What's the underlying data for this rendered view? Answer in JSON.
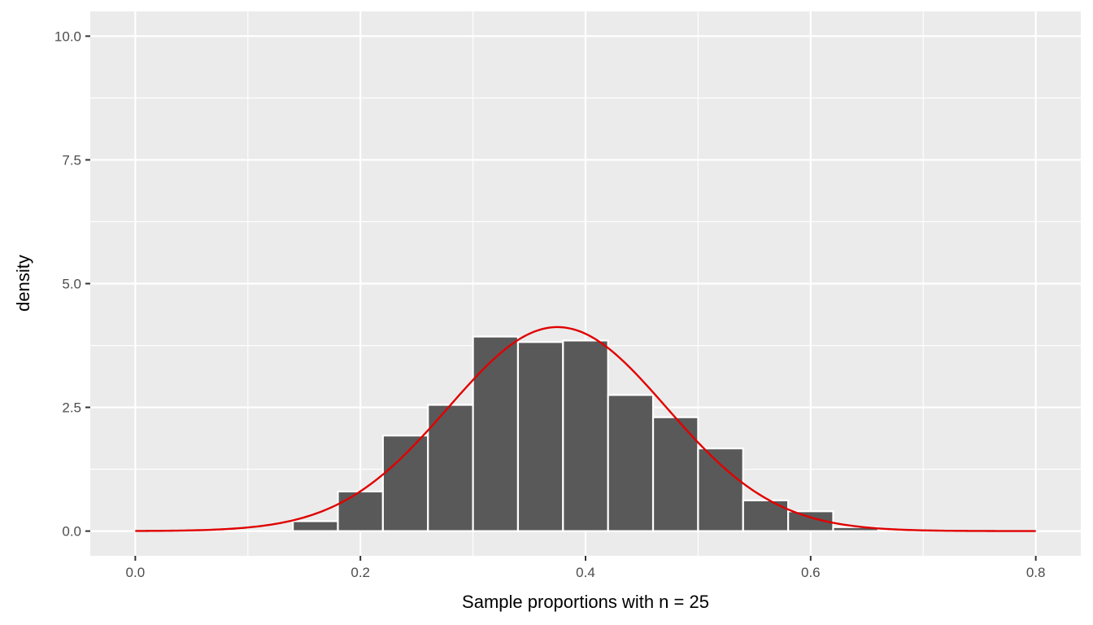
{
  "chart_data": {
    "type": "bar",
    "title": "",
    "xlabel": "Sample proportions with n = 25",
    "ylabel": "density",
    "xlim": [
      -0.04,
      0.84
    ],
    "ylim": [
      -0.5,
      10.5
    ],
    "x_ticks": [
      0.0,
      0.2,
      0.4,
      0.6,
      0.8
    ],
    "x_tick_labels": [
      "0.0",
      "0.2",
      "0.4",
      "0.6",
      "0.8"
    ],
    "y_ticks": [
      0.0,
      2.5,
      5.0,
      7.5,
      10.0
    ],
    "y_tick_labels": [
      "0.0",
      "2.5",
      "5.0",
      "7.5",
      "10.0"
    ],
    "grid": true,
    "bin_width": 0.04,
    "histogram": {
      "name": "density",
      "bins": [
        {
          "x0": 0.14,
          "x1": 0.18,
          "density": 0.2
        },
        {
          "x0": 0.18,
          "x1": 0.22,
          "density": 0.8
        },
        {
          "x0": 0.22,
          "x1": 0.26,
          "density": 1.93
        },
        {
          "x0": 0.26,
          "x1": 0.3,
          "density": 2.55
        },
        {
          "x0": 0.3,
          "x1": 0.34,
          "density": 3.93
        },
        {
          "x0": 0.34,
          "x1": 0.38,
          "density": 3.82
        },
        {
          "x0": 0.38,
          "x1": 0.42,
          "density": 3.85
        },
        {
          "x0": 0.42,
          "x1": 0.46,
          "density": 2.75
        },
        {
          "x0": 0.46,
          "x1": 0.5,
          "density": 2.3
        },
        {
          "x0": 0.5,
          "x1": 0.54,
          "density": 1.67
        },
        {
          "x0": 0.54,
          "x1": 0.58,
          "density": 0.62
        },
        {
          "x0": 0.58,
          "x1": 0.62,
          "density": 0.4
        },
        {
          "x0": 0.62,
          "x1": 0.66,
          "density": 0.08
        }
      ],
      "fill": "#595959",
      "stroke": "#ffffff"
    },
    "normal_curve": {
      "mean": 0.375,
      "sd": 0.0968,
      "x_range": [
        0.0,
        0.8
      ],
      "color": "#e00000"
    },
    "colors": {
      "panel_background": "#ebebeb",
      "grid_major": "#ffffff",
      "tick_text": "#4d4d4d",
      "tick_mark": "#333333"
    }
  }
}
